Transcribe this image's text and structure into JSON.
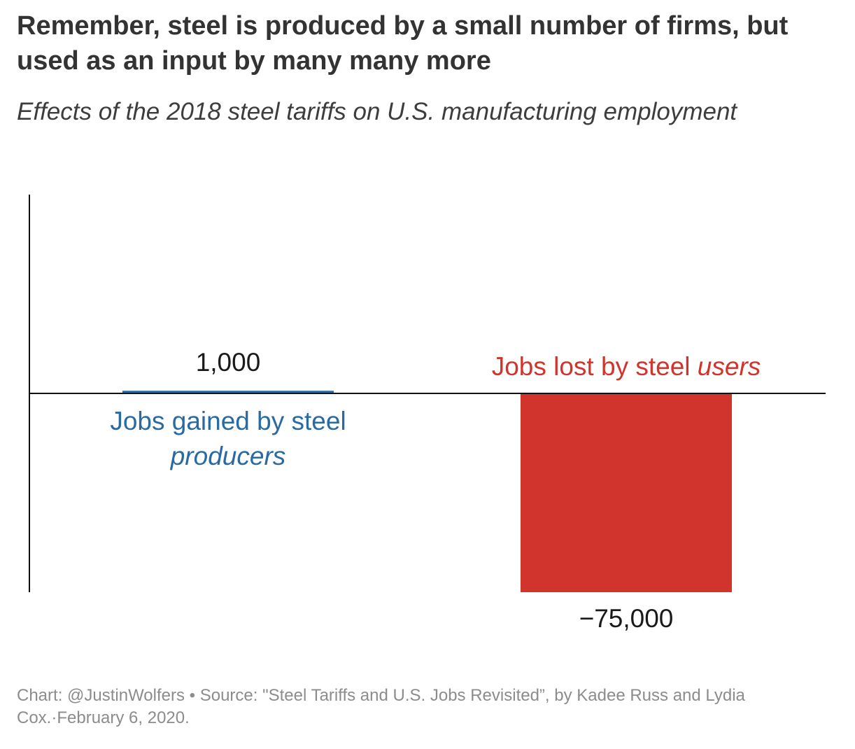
{
  "title": "Remember, steel is produced by a small number of firms, but used as an input by many many more",
  "subtitle": "Effects of the 2018 steel tariffs on U.S. manufacturing employment",
  "footer": "Chart: @JustinWolfers • Source: \"Steel Tariffs and U.S. Jobs Revisited”, by Kadee Russ and Lydia Cox.·February 6, 2020.",
  "colors": {
    "producers": "#2a6aa3",
    "users": "#d0342c",
    "axis": "#111111",
    "value_label": "#1a1a1a"
  },
  "chart_data": {
    "type": "bar",
    "categories": [
      "Jobs gained by steel producers",
      "Jobs lost by steel users"
    ],
    "values": [
      1000,
      -75000
    ],
    "value_labels": [
      "1,000",
      "−75,000"
    ],
    "label_parts": [
      {
        "plain": "Jobs gained by steel",
        "italic": "producers"
      },
      {
        "plain": "Jobs lost by steel ",
        "italic": "users"
      }
    ],
    "ylim": [
      -75000,
      75000
    ],
    "xlabel": "",
    "ylabel": "",
    "grid": false,
    "legend": "none"
  }
}
